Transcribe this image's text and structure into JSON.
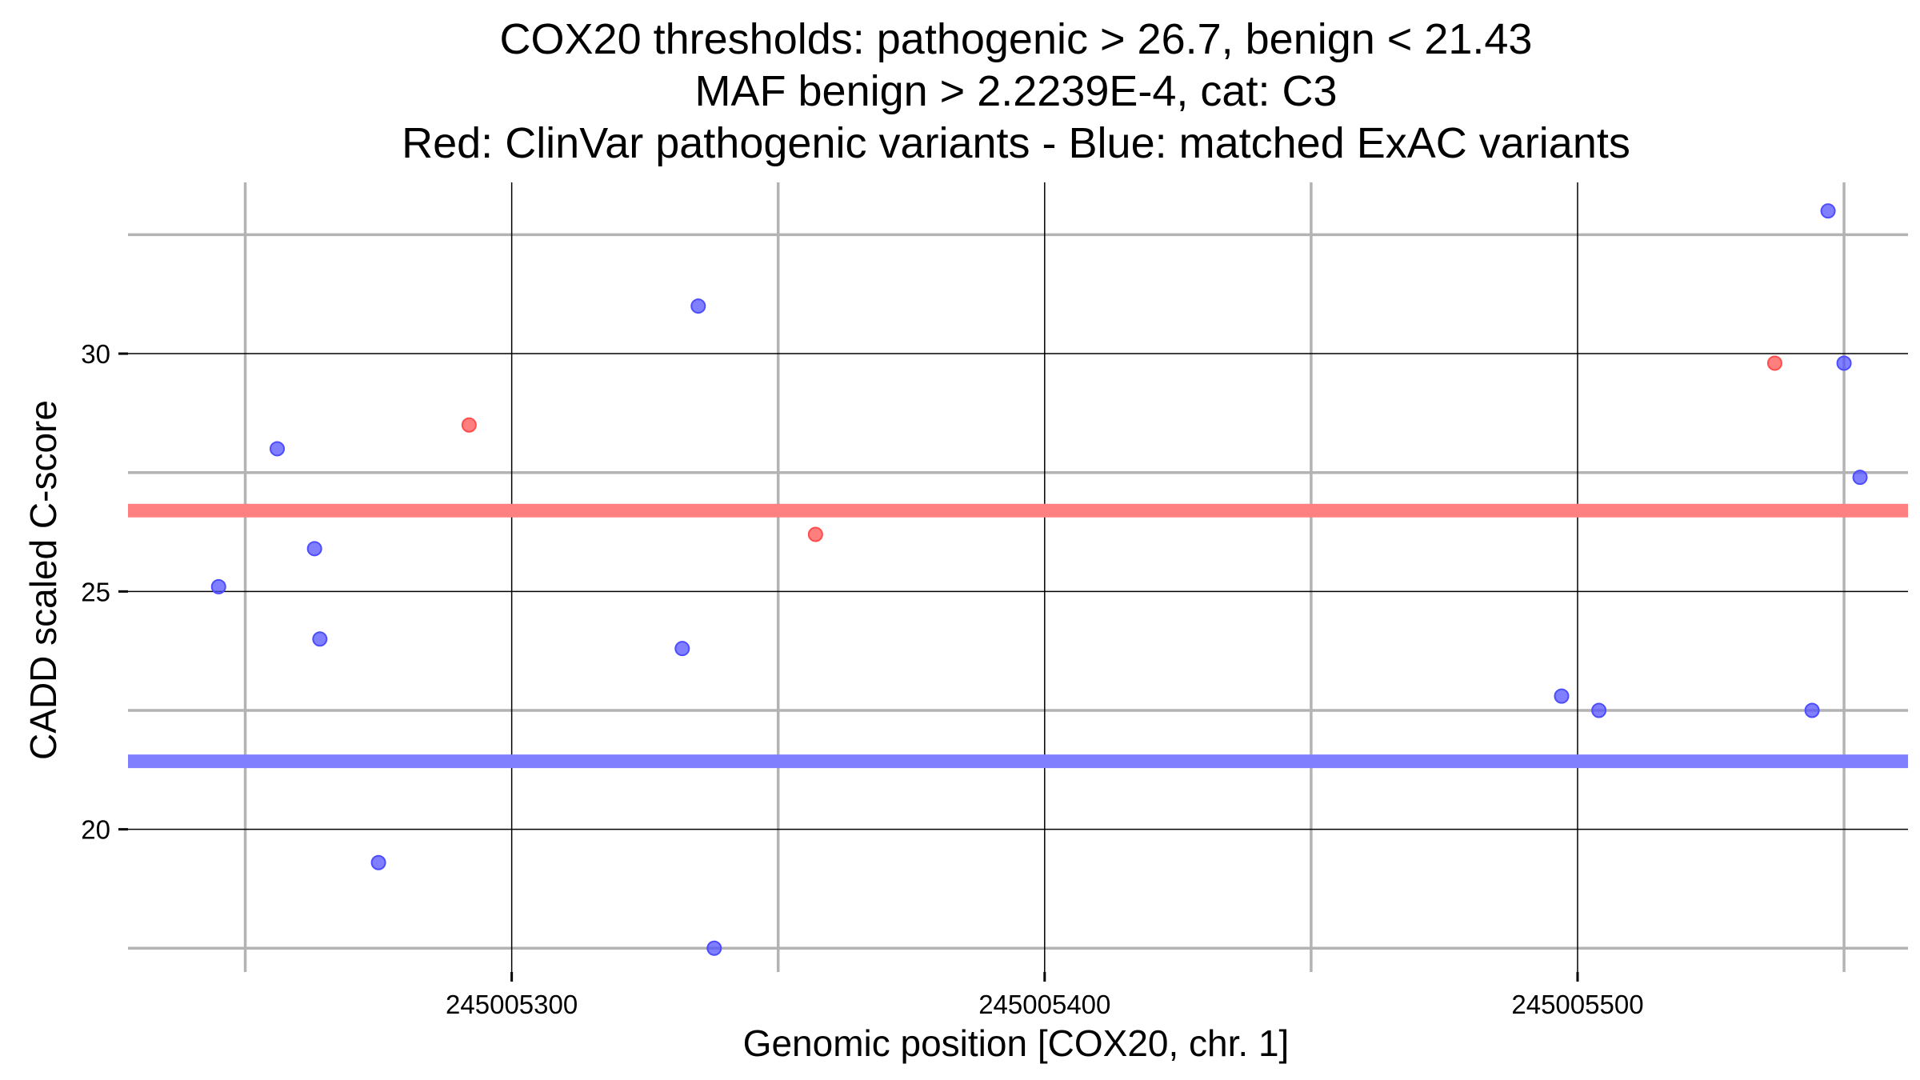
{
  "chart_data": {
    "type": "scatter",
    "title": [
      "COX20 thresholds: pathogenic > 26.7, benign < 21.43",
      "MAF benign > 2.2239E-4, cat: C3",
      "Red: ClinVar pathogenic variants - Blue: matched ExAC variants"
    ],
    "xlabel": "Genomic position [COX20, chr. 1]",
    "ylabel": "CADD scaled C-score",
    "xlim": [
      245005228,
      245005562
    ],
    "ylim": [
      17.0,
      33.6
    ],
    "x_ticks": [
      245005300,
      245005400,
      245005500
    ],
    "x_tick_labels": [
      "245005300",
      "245005400",
      "245005500"
    ],
    "x_minor_grid": [
      245005250,
      245005350,
      245005450,
      245005550
    ],
    "y_ticks": [
      20,
      25,
      30
    ],
    "y_tick_labels": [
      "20",
      "25",
      "30"
    ],
    "y_minor_grid": [
      17.5,
      22.5,
      27.5,
      32.5
    ],
    "grid": true,
    "thresholds": [
      {
        "name": "pathogenic",
        "value": 26.7,
        "color": "#ff8080"
      },
      {
        "name": "benign",
        "value": 21.43,
        "color": "#8080ff"
      }
    ],
    "series": [
      {
        "color": "#ff4d4d",
        "points": [
          {
            "x": 245005292,
            "y": 28.5
          },
          {
            "x": 245005357,
            "y": 26.2
          },
          {
            "x": 245005537,
            "y": 29.8
          }
        ]
      },
      {
        "color": "#4d4dff",
        "points": [
          {
            "x": 245005245,
            "y": 25.1
          },
          {
            "x": 245005256,
            "y": 28.0
          },
          {
            "x": 245005263,
            "y": 25.9
          },
          {
            "x": 245005264,
            "y": 24.0
          },
          {
            "x": 245005275,
            "y": 19.3
          },
          {
            "x": 245005332,
            "y": 23.8
          },
          {
            "x": 245005335,
            "y": 31.0
          },
          {
            "x": 245005338,
            "y": 17.5
          },
          {
            "x": 245005497,
            "y": 22.8
          },
          {
            "x": 245005504,
            "y": 22.5
          },
          {
            "x": 245005544,
            "y": 22.5
          },
          {
            "x": 245005547,
            "y": 33.0
          },
          {
            "x": 245005550,
            "y": 29.8
          },
          {
            "x": 245005553,
            "y": 27.4
          }
        ]
      }
    ]
  }
}
